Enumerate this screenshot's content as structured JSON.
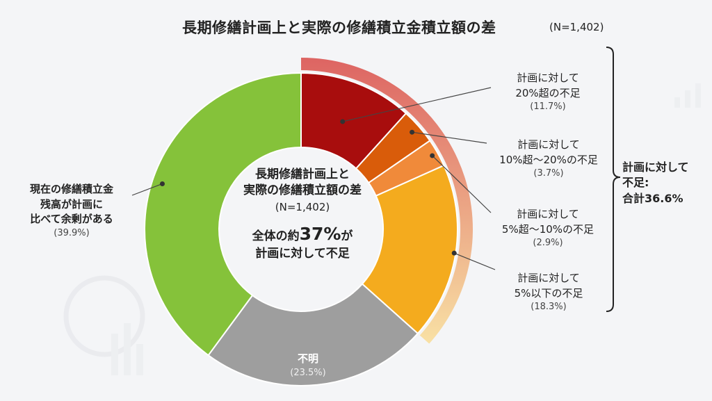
{
  "title": "長期修繕計画上と実際の修繕積立金積立額の差",
  "sample_size": "(N=1,402)",
  "center": {
    "title": "長期修繕計画上と\n実際の修繕積立額の差",
    "sample": "(N=1,402)",
    "msg_prefix": "全体の約",
    "msg_big": "37%",
    "msg_suffix": "が",
    "msg_line2": "計画に対して不足"
  },
  "bracket_label": "計画に対して\n不足:\n合計36.6%",
  "colors": {
    "shortfall_over20": "#a80d0d",
    "shortfall_10_20": "#d95c0a",
    "shortfall_5_10": "#f08a3a",
    "shortfall_under5": "#f4ab1e",
    "unknown": "#9e9e9e",
    "surplus": "#85c23a",
    "outer_arc_start": "#d94b48",
    "outer_arc_end": "#f9dd96"
  },
  "chart_data": {
    "type": "pie",
    "donut": true,
    "title": "長期修繕計画上と実際の修繕積立金積立額の差",
    "slices": [
      {
        "label": "計画に対して\n20%超の不足",
        "value": 11.7,
        "pct_label": "(11.7%)",
        "color_key": "shortfall_over20"
      },
      {
        "label": "計画に対して\n10%超～20%の不足",
        "value": 3.7,
        "pct_label": "(3.7%)",
        "color_key": "shortfall_10_20"
      },
      {
        "label": "計画に対して\n5%超～10%の不足",
        "value": 2.9,
        "pct_label": "(2.9%)",
        "color_key": "shortfall_5_10"
      },
      {
        "label": "計画に対して\n5%以下の不足",
        "value": 18.3,
        "pct_label": "(18.3%)",
        "color_key": "shortfall_under5"
      },
      {
        "label": "不明",
        "value": 23.5,
        "pct_label": "(23.5%)",
        "color_key": "unknown"
      },
      {
        "label": "現在の修繕積立金\n残高が計画に\n比べて余剰がある",
        "value": 39.9,
        "pct_label": "(39.9%)",
        "color_key": "surplus"
      }
    ],
    "outer_arc": {
      "covers_slices": [
        0,
        1,
        2,
        3
      ],
      "total": 36.6
    }
  }
}
